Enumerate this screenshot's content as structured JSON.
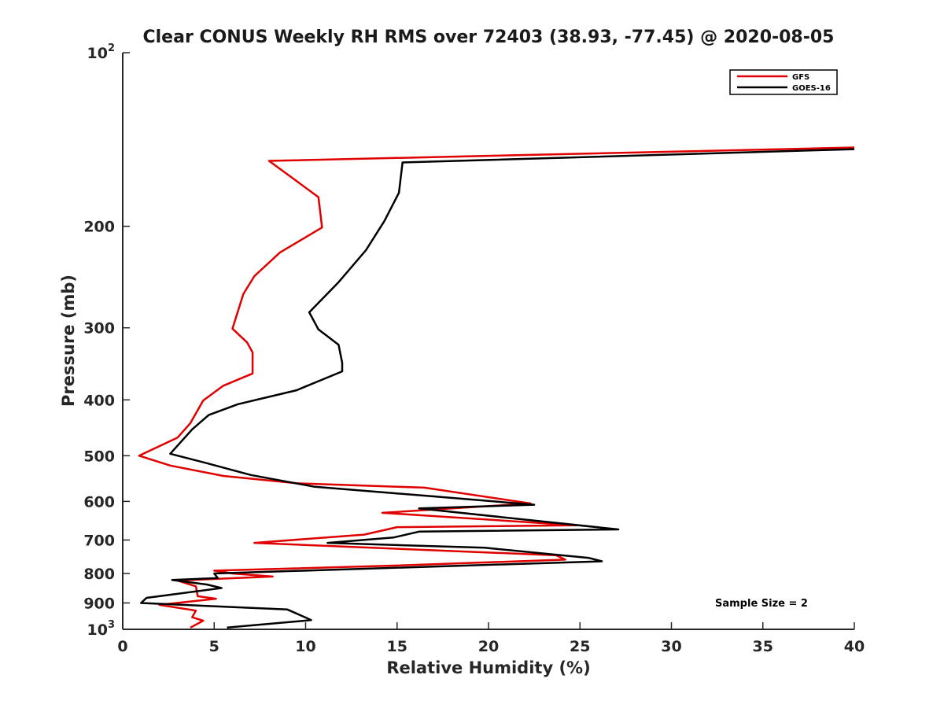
{
  "chart_data": {
    "type": "line",
    "title": "Clear CONUS Weekly RH RMS over 72403 (38.93, -77.45) @ 2020-08-05",
    "xlabel": "Relative Humidity (%)",
    "ylabel": "Pressure (mb)",
    "xlim": [
      0,
      40
    ],
    "ylim": [
      100,
      1000
    ],
    "yscale": "log",
    "y_reversed": true,
    "x_ticks": [
      0,
      5,
      10,
      15,
      20,
      25,
      30,
      35,
      40
    ],
    "y_ticks": [
      {
        "value": 100,
        "base": "10",
        "exp": "2"
      },
      {
        "value": 200,
        "label": "200"
      },
      {
        "value": 300,
        "label": "300"
      },
      {
        "value": 400,
        "label": "400"
      },
      {
        "value": 500,
        "label": "500"
      },
      {
        "value": 600,
        "label": "600"
      },
      {
        "value": 700,
        "label": "700"
      },
      {
        "value": 800,
        "label": "800"
      },
      {
        "value": 900,
        "label": "900"
      },
      {
        "value": 1000,
        "base": "10",
        "exp": "3"
      }
    ],
    "grid": false,
    "legend_position": "top-right",
    "annotation": "Sample Size = 2",
    "series": [
      {
        "name": "GFS",
        "color": "#e00000",
        "points": [
          [
            40.0,
            146
          ],
          [
            8.0,
            154
          ],
          [
            10.7,
            178
          ],
          [
            10.9,
            201
          ],
          [
            8.6,
            222
          ],
          [
            7.2,
            244
          ],
          [
            6.6,
            262
          ],
          [
            6.0,
            301
          ],
          [
            6.8,
            318
          ],
          [
            7.1,
            331
          ],
          [
            7.1,
            360
          ],
          [
            5.5,
            378
          ],
          [
            4.4,
            401
          ],
          [
            3.7,
            439
          ],
          [
            3.0,
            465
          ],
          [
            0.9,
            500
          ],
          [
            2.6,
            520
          ],
          [
            5.5,
            542
          ],
          [
            9.5,
            558
          ],
          [
            16.5,
            568
          ],
          [
            22.3,
            605
          ],
          [
            14.2,
            628
          ],
          [
            24.8,
            660
          ],
          [
            15.0,
            665
          ],
          [
            13.2,
            685
          ],
          [
            7.2,
            708
          ],
          [
            23.7,
            744
          ],
          [
            24.2,
            757
          ],
          [
            15.0,
            775
          ],
          [
            5.0,
            791
          ],
          [
            6.0,
            800
          ],
          [
            8.2,
            810
          ],
          [
            3.0,
            823
          ],
          [
            4.0,
            842
          ],
          [
            4.1,
            876
          ],
          [
            5.1,
            885
          ],
          [
            2.0,
            907
          ],
          [
            4.0,
            928
          ],
          [
            3.8,
            953
          ],
          [
            4.4,
            966
          ],
          [
            3.7,
            993
          ]
        ]
      },
      {
        "name": "GOES-16",
        "color": "#000000",
        "points": [
          [
            40.0,
            147
          ],
          [
            15.3,
            155
          ],
          [
            15.1,
            175
          ],
          [
            14.3,
            196
          ],
          [
            13.3,
            220
          ],
          [
            11.8,
            250
          ],
          [
            10.2,
            282
          ],
          [
            10.7,
            302
          ],
          [
            11.8,
            321
          ],
          [
            12.0,
            345
          ],
          [
            12.0,
            357
          ],
          [
            9.5,
            385
          ],
          [
            6.3,
            407
          ],
          [
            4.7,
            425
          ],
          [
            3.8,
            450
          ],
          [
            2.6,
            496
          ],
          [
            4.6,
            515
          ],
          [
            7.0,
            540
          ],
          [
            10.5,
            566
          ],
          [
            17.0,
            588
          ],
          [
            22.5,
            608
          ],
          [
            16.2,
            617
          ],
          [
            27.1,
            671
          ],
          [
            16.2,
            677
          ],
          [
            14.8,
            693
          ],
          [
            11.2,
            708
          ],
          [
            19.8,
            722
          ],
          [
            25.5,
            752
          ],
          [
            26.2,
            762
          ],
          [
            5.0,
            800
          ],
          [
            5.2,
            815
          ],
          [
            2.7,
            821
          ],
          [
            4.6,
            836
          ],
          [
            5.4,
            848
          ],
          [
            1.3,
            882
          ],
          [
            1.0,
            900
          ],
          [
            9.0,
            924
          ],
          [
            10.0,
            954
          ],
          [
            10.3,
            964
          ],
          [
            5.7,
            993
          ]
        ]
      }
    ]
  }
}
